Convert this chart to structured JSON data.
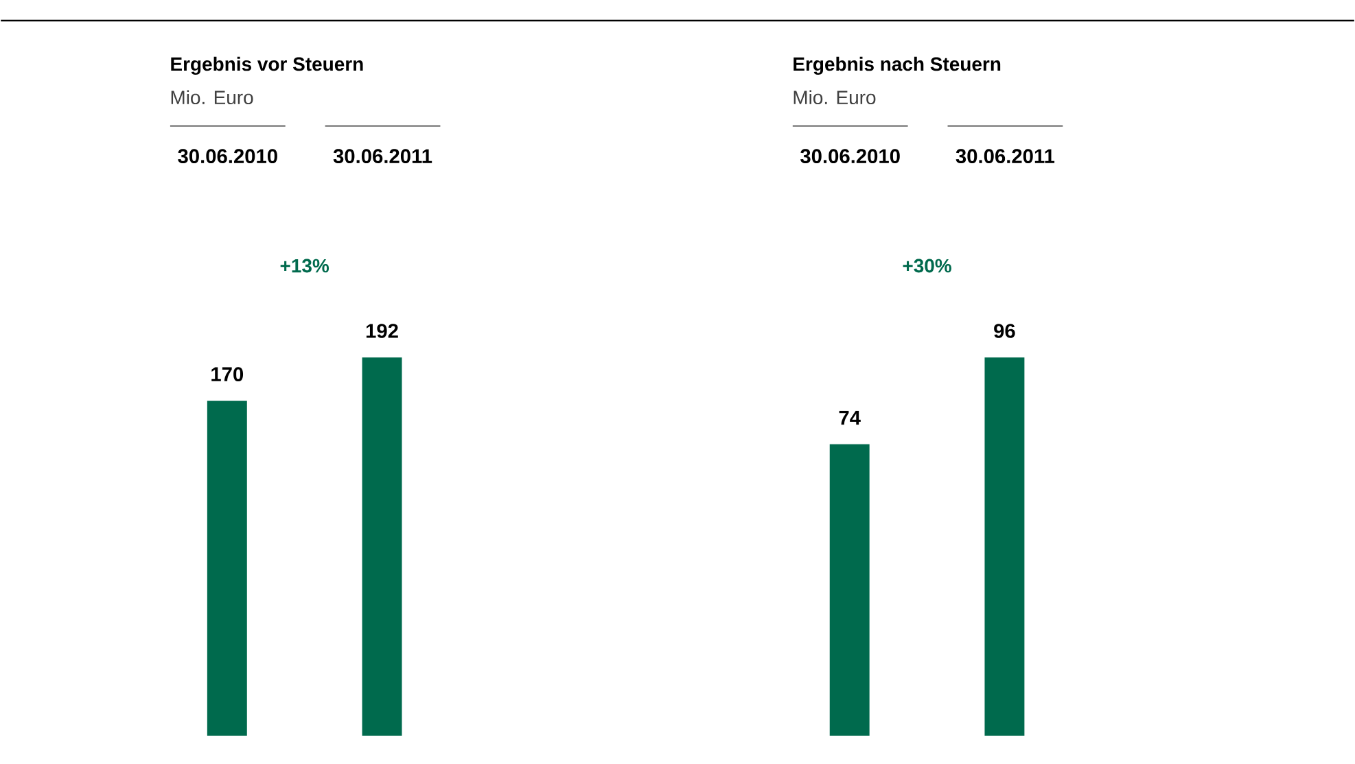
{
  "chart_data": [
    {
      "type": "bar",
      "title": "Ergebnis vor Steuern",
      "subtitle": "Mio. Euro",
      "categories": [
        "30.06.2010",
        "30.06.2011"
      ],
      "values": [
        170,
        192
      ],
      "color": "#006a4d",
      "data_labels": true,
      "tick_labels": "x",
      "annotations": [
        "+13%"
      ]
    },
    {
      "type": "bar",
      "title": "Ergebnis nach Steuern",
      "subtitle": "Mio. Euro",
      "categories": [
        "30.06.2010",
        "30.06.2011"
      ],
      "values": [
        74,
        96
      ],
      "color": "#006a4d",
      "data_labels": true,
      "tick_labels": "x",
      "annotations": [
        "+30%"
      ]
    }
  ]
}
